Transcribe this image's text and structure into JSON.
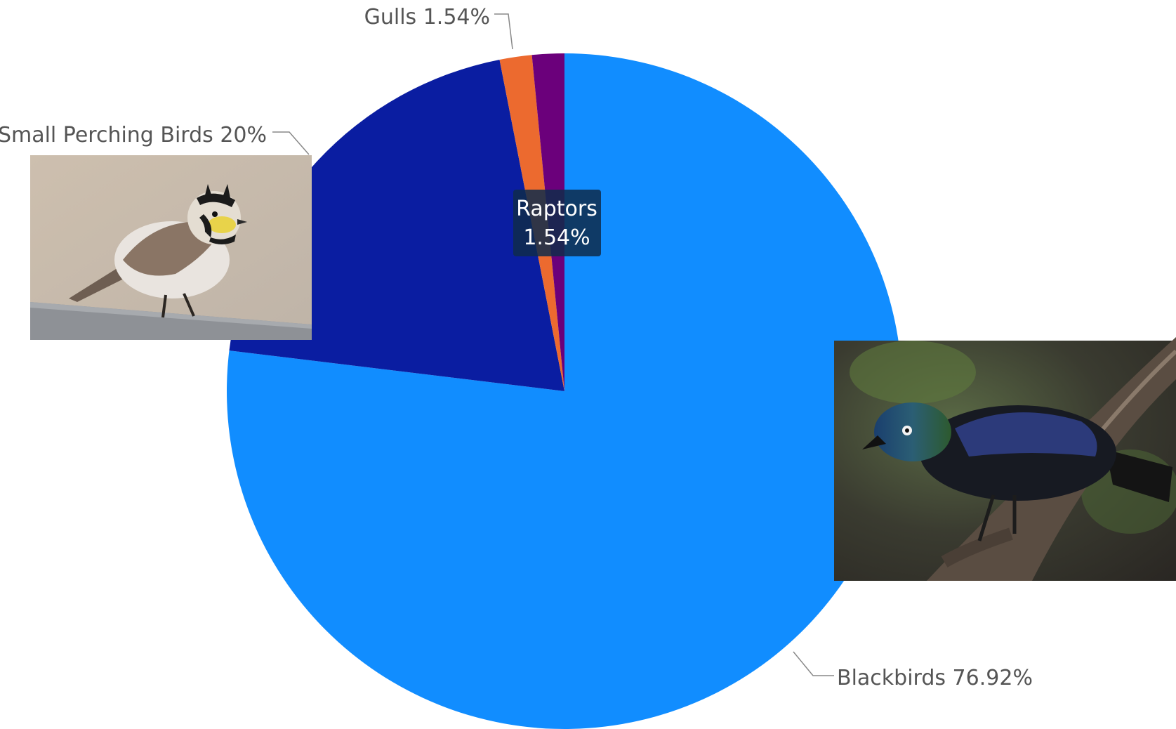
{
  "chart_data": {
    "type": "pie",
    "title": "",
    "start_angle_deg": 0,
    "direction": "clockwise",
    "slices": [
      {
        "name": "Blackbirds",
        "value": 76.92,
        "label": "Blackbirds 76.92%",
        "color": "#118DFF"
      },
      {
        "name": "Small Perching Birds",
        "value": 20,
        "label": "Small Perching Birds 20%",
        "color": "#0A1DA1"
      },
      {
        "name": "Gulls",
        "value": 1.54,
        "label": "Gulls 1.54%",
        "color": "#EC6A2F"
      },
      {
        "name": "Raptors",
        "value": 1.54,
        "label": "Raptors",
        "color": "#6B007B"
      }
    ],
    "tooltip": {
      "category": "Raptors",
      "value_label": "1.54%"
    },
    "images": [
      {
        "name": "horned-lark-photo",
        "slice": "Small Perching Birds"
      },
      {
        "name": "common-grackle-photo",
        "slice": "Blackbirds"
      }
    ],
    "legend": "none"
  }
}
